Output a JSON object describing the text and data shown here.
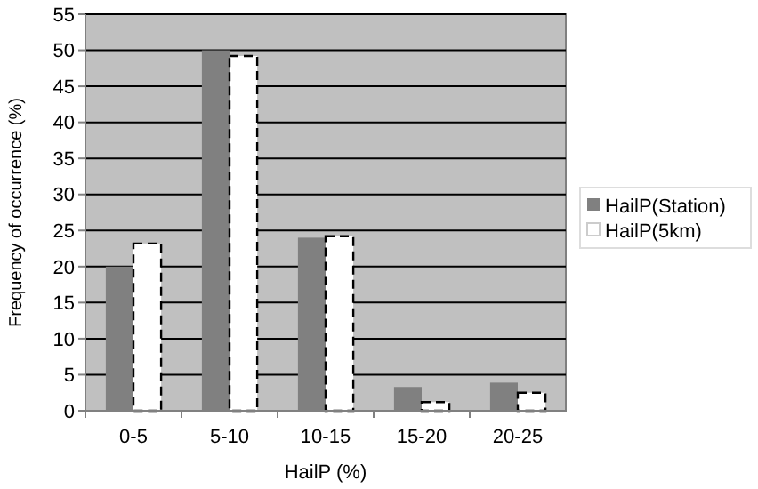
{
  "chart_data": {
    "type": "bar",
    "xlabel": "HailP (%)",
    "ylabel": "Frequency of occurrence (%)",
    "categories": [
      "0-5",
      "5-10",
      "10-15",
      "15-20",
      "20-25"
    ],
    "series": [
      {
        "name": "HailP(Station)",
        "color": "#808080",
        "values": [
          20,
          50,
          24,
          3.3,
          3.9
        ]
      },
      {
        "name": "HailP(5km)",
        "color": "#ffffff",
        "values": [
          23.2,
          49.2,
          24.2,
          1.2,
          2.5
        ],
        "line_style": "dashed"
      }
    ],
    "ylim": [
      0,
      55
    ],
    "yticks": [
      0,
      5,
      10,
      15,
      20,
      25,
      30,
      35,
      40,
      45,
      50,
      55
    ],
    "grid": "y",
    "legend": "right"
  }
}
